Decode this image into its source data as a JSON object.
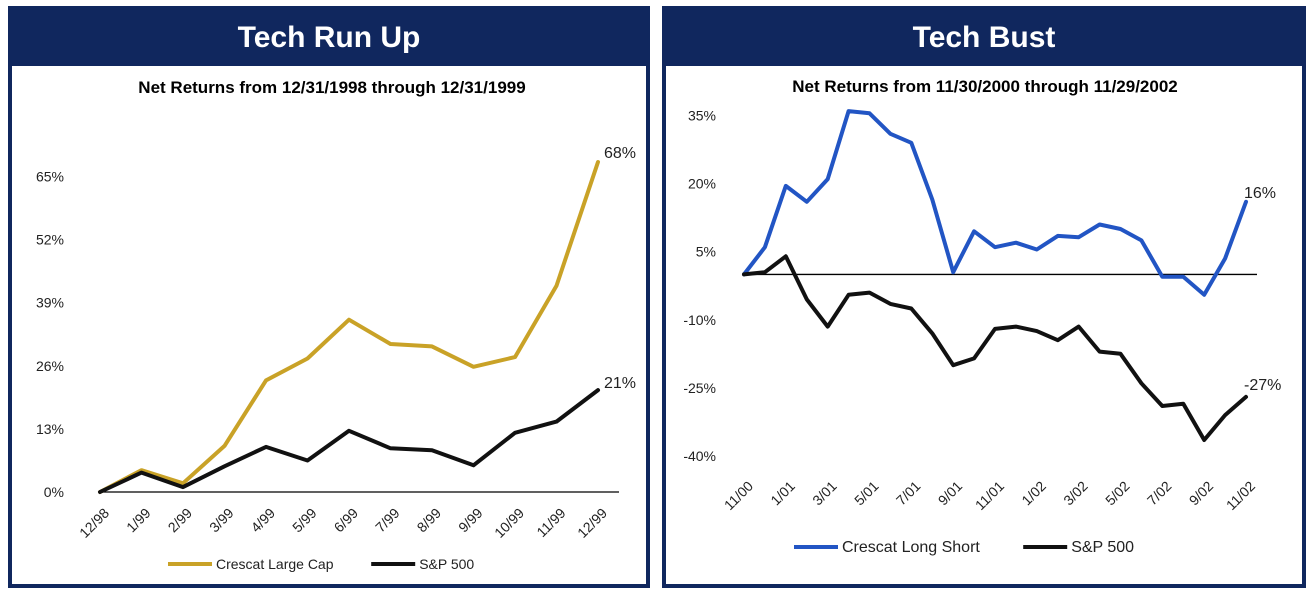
{
  "panels": [
    {
      "header": "Tech Run Up"
    },
    {
      "header": "Tech Bust"
    }
  ],
  "chart_data": [
    {
      "type": "line",
      "title": "Net Returns from 12/31/1998 through 12/31/1999",
      "categories": [
        "12/98",
        "1/99",
        "2/99",
        "3/99",
        "4/99",
        "5/99",
        "6/99",
        "7/99",
        "8/99",
        "9/99",
        "10/99",
        "11/99",
        "12/99"
      ],
      "y_ticks": [
        0,
        13,
        26,
        39,
        52,
        65
      ],
      "y_tick_labels": [
        "0%",
        "13%",
        "26%",
        "39%",
        "52%",
        "65%"
      ],
      "ylim": [
        0,
        75
      ],
      "series": [
        {
          "name": "Crescat Large Cap",
          "color": "#c9a227",
          "values": [
            0,
            4.5,
            1.8,
            9.5,
            23,
            27.5,
            35.5,
            30.5,
            30,
            25.8,
            27.8,
            42.5,
            68
          ],
          "end_label": "68%"
        },
        {
          "name": "S&P 500",
          "color": "#111111",
          "values": [
            0,
            4,
            1,
            5.3,
            9.3,
            6.5,
            12.6,
            9,
            8.6,
            5.5,
            12.2,
            14.5,
            21
          ],
          "end_label": "21%"
        }
      ],
      "legend_position": "bottom",
      "grid": false
    },
    {
      "type": "line",
      "title": "Net Returns from 11/30/2000 through 11/29/2002",
      "categories": [
        "11/00",
        "12/00",
        "1/01",
        "2/01",
        "3/01",
        "4/01",
        "5/01",
        "6/01",
        "7/01",
        "8/01",
        "9/01",
        "10/01",
        "11/01",
        "12/01",
        "1/02",
        "2/02",
        "3/02",
        "4/02",
        "5/02",
        "6/02",
        "7/02",
        "8/02",
        "9/02",
        "10/02",
        "11/02"
      ],
      "category_tick_labels": [
        "11/00",
        "1/01",
        "3/01",
        "5/01",
        "7/01",
        "9/01",
        "11/01",
        "1/02",
        "3/02",
        "5/02",
        "7/02",
        "9/02",
        "11/02"
      ],
      "y_ticks": [
        -40,
        -25,
        -10,
        5,
        20,
        35
      ],
      "y_tick_labels": [
        "-40%",
        "-25%",
        "-10%",
        "5%",
        "20%",
        "35%"
      ],
      "ylim": [
        -42,
        38
      ],
      "zero_line": true,
      "series": [
        {
          "name": "Crescat Long Short",
          "color": "#2255c4",
          "values": [
            0,
            6,
            19.5,
            16,
            21,
            36,
            35.5,
            31,
            29,
            16.5,
            0.5,
            9.5,
            6,
            7,
            5.5,
            8.5,
            8.2,
            11,
            10,
            7.5,
            -0.5,
            -0.5,
            -4.5,
            3.5,
            16
          ],
          "end_label": "16%"
        },
        {
          "name": "S&P 500",
          "color": "#111111",
          "values": [
            0,
            0.5,
            4,
            -5.5,
            -11.5,
            -4.5,
            -4,
            -6.5,
            -7.5,
            -13,
            -20,
            -18.5,
            -12,
            -11.5,
            -12.5,
            -14.5,
            -11.5,
            -17,
            -17.5,
            -24,
            -29,
            -28.5,
            -36.5,
            -31,
            -27
          ],
          "end_label": "-27%"
        }
      ],
      "legend_position": "bottom",
      "grid": false
    }
  ]
}
